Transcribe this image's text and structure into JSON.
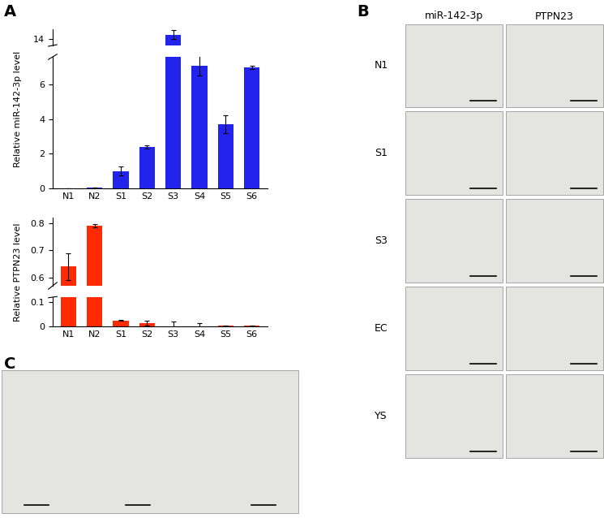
{
  "chart_data": [
    {
      "type": "bar",
      "y_label": "Relative miR-142-3p level",
      "categories": [
        "N1",
        "N2",
        "S1",
        "S2",
        "S3",
        "S4",
        "S5",
        "S6"
      ],
      "values": [
        0.02,
        0.03,
        1.0,
        2.4,
        14.2,
        7.1,
        3.7,
        7.0
      ],
      "errors": [
        0.0,
        0.02,
        0.25,
        0.1,
        0.2,
        0.6,
        0.5,
        0.1
      ],
      "color": "#2323ee",
      "ylim": [
        [
          0,
          7.6
        ],
        [
          13.7,
          14.45
        ]
      ],
      "yticks": [
        [
          0,
          2,
          4,
          6
        ],
        [
          14
        ]
      ]
    },
    {
      "type": "bar",
      "y_label": "Relative PTPN23 level",
      "categories": [
        "N1",
        "N2",
        "S1",
        "S2",
        "S3",
        "S4",
        "S5",
        "S6"
      ],
      "values": [
        0.64,
        0.79,
        0.025,
        0.015,
        0.0,
        0.0,
        0.002,
        0.002
      ],
      "errors": [
        0.05,
        0.005,
        0.002,
        0.01,
        0.02,
        0.015,
        0.001,
        0.001
      ],
      "color": "#ff2a00",
      "ylim": [
        [
          0,
          0.12
        ],
        [
          0.57,
          0.82
        ]
      ],
      "yticks": [
        [
          0,
          0.1
        ],
        [
          0.6,
          0.7,
          0.8
        ]
      ]
    }
  ],
  "panel_labels": [
    "A",
    "B",
    "C"
  ],
  "image_grid": {
    "columns": [
      "miR-142-3p",
      "PTPN23"
    ],
    "rows": [
      "N1",
      "S1",
      "S3",
      "EC",
      "YS"
    ]
  }
}
